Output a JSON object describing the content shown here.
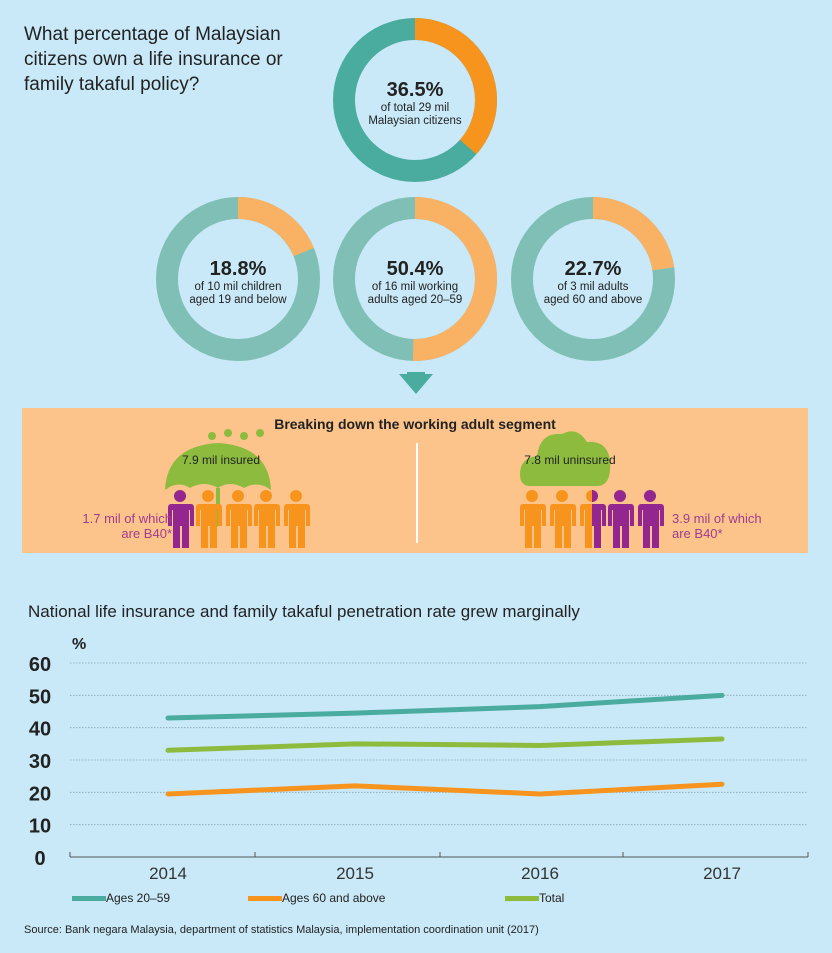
{
  "question": "What percentage of Malaysian citizens own a life insurance or family takaful policy?",
  "colors": {
    "teal": "#4aab9f",
    "orange": "#f7941d",
    "teal_light": "#80bfb6",
    "orange_light": "#f9b263",
    "green": "#8dbb3e",
    "purple": "#93268f",
    "band": "#fcc48a",
    "background": "#c9e9f8"
  },
  "donuts": [
    {
      "pct": 36.5,
      "label": "36.5%",
      "line1": "of total 29 mil",
      "line2": "Malaysian citizens"
    },
    {
      "pct": 18.8,
      "label": "18.8%",
      "line1": "of 10 mil children",
      "line2": "aged 19 and below"
    },
    {
      "pct": 50.4,
      "label": "50.4%",
      "line1": "of 16 mil working",
      "line2": "adults aged 20–59"
    },
    {
      "pct": 22.7,
      "label": "22.7%",
      "line1": "of 3 mil adults",
      "line2": "aged 60 and above"
    }
  ],
  "breakdown": {
    "title": "Breaking down the working adult segment",
    "insured": {
      "label": "7.9 mil insured",
      "b40_1": "1.7 mil of which",
      "b40_2": "are B40*",
      "icon": "umbrella-icon"
    },
    "uninsured": {
      "label": "7.8 mil uninsured",
      "b40_1": "3.9 mil of which",
      "b40_2": "are B40*",
      "icon": "cloud-icon"
    }
  },
  "chart_data": {
    "type": "line",
    "title": "National life insurance and family takaful penetration rate grew marginally",
    "ylabel": "%",
    "x": [
      "2014",
      "2015",
      "2016",
      "2017"
    ],
    "yticks": [
      "0",
      "10",
      "20",
      "30",
      "40",
      "50",
      "60"
    ],
    "ylim": [
      0,
      60
    ],
    "grid": true,
    "legend": "bottom",
    "series": [
      {
        "name": "Ages 20–59",
        "color": "#4aab9f",
        "values": [
          43,
          44.5,
          46.5,
          50
        ]
      },
      {
        "name": "Ages 60 and above",
        "color": "#f7941d",
        "values": [
          19.5,
          22,
          19.5,
          22.5
        ]
      },
      {
        "name": "Total",
        "color": "#8dbb3e",
        "values": [
          33,
          35,
          34.5,
          36.5
        ]
      }
    ]
  },
  "source": "Source: Bank negara Malaysia, department of statistics Malaysia, implementation coordination unit (2017)"
}
